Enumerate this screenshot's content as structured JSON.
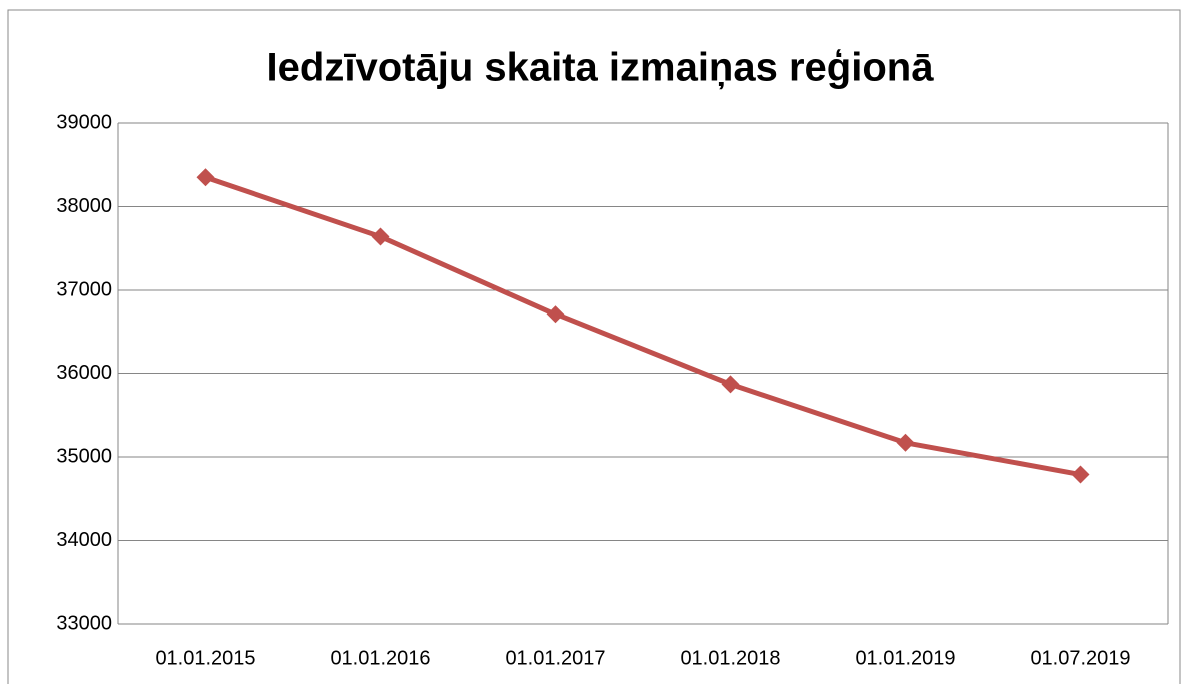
{
  "chart_data": {
    "type": "line",
    "title": "Iedzīvotāju skaita izmaiņas reģionā",
    "categories": [
      "01.01.2015",
      "01.01.2016",
      "01.01.2017",
      "01.01.2018",
      "01.01.2019",
      "01.07.2019"
    ],
    "values": [
      38350,
      37640,
      36710,
      35870,
      35170,
      34790
    ],
    "color": "#c0504d",
    "ylim": [
      33000,
      39000
    ],
    "yticks": [
      33000,
      34000,
      35000,
      36000,
      37000,
      38000,
      39000
    ],
    "grid": true
  }
}
